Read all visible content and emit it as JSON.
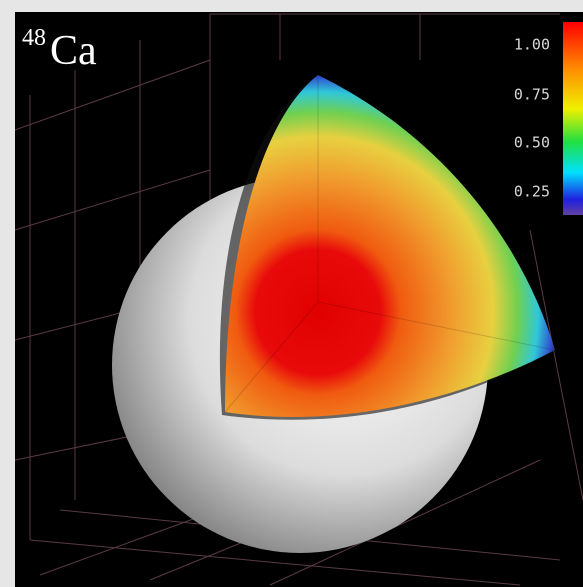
{
  "label": {
    "superscript": "48",
    "element": "Ca"
  },
  "colorbar": {
    "ticks": [
      "1.00",
      "0.75",
      "0.50",
      "0.25"
    ]
  }
}
